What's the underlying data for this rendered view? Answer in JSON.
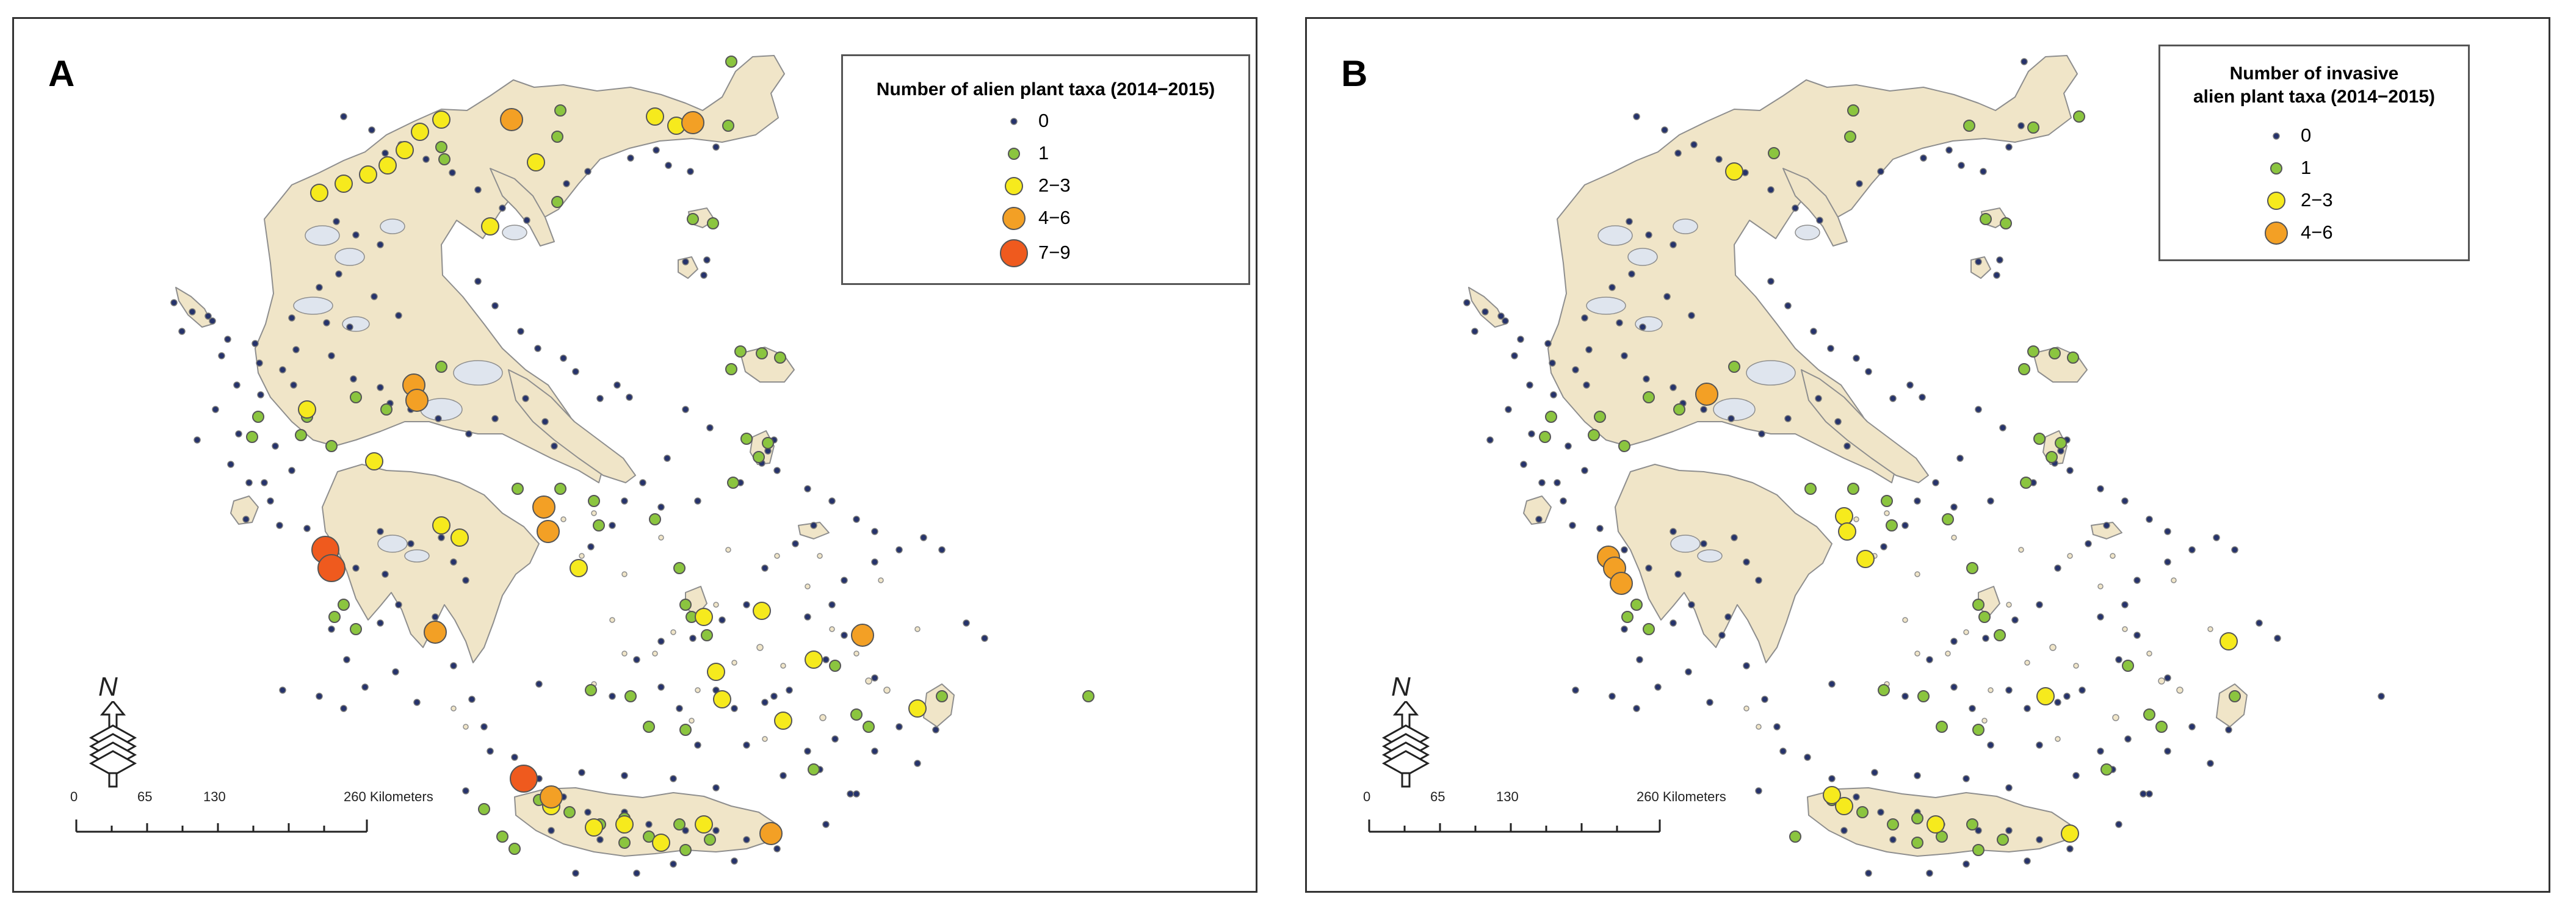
{
  "colors": {
    "land": "#f0e5c8",
    "coast": "#8e8e8e",
    "lake": "#dfe5ee",
    "cat0": "#26336b",
    "cat1": "#8bc53f",
    "cat2": "#f6ea1d",
    "cat3": "#f3a025",
    "cat4": "#ef5a1e"
  },
  "panels": [
    {
      "label": "A",
      "legend": {
        "title_lines": [
          "Number of alien plant taxa (2014−2015)"
        ],
        "items": [
          "0",
          "1",
          "2−3",
          "4−6",
          "7−9"
        ]
      },
      "scale": {
        "ticks": [
          "0",
          "65",
          "130",
          "260 Kilometers"
        ]
      },
      "north": "N"
    },
    {
      "label": "B",
      "legend": {
        "title_lines": [
          "Number of invasive",
          "alien plant taxa (2014−2015)"
        ],
        "items": [
          "0",
          "1",
          "2−3",
          "4−6"
        ]
      },
      "scale": {
        "ticks": [
          "0",
          "65",
          "130",
          "260 Kilometers"
        ]
      },
      "north": "N"
    }
  ]
}
